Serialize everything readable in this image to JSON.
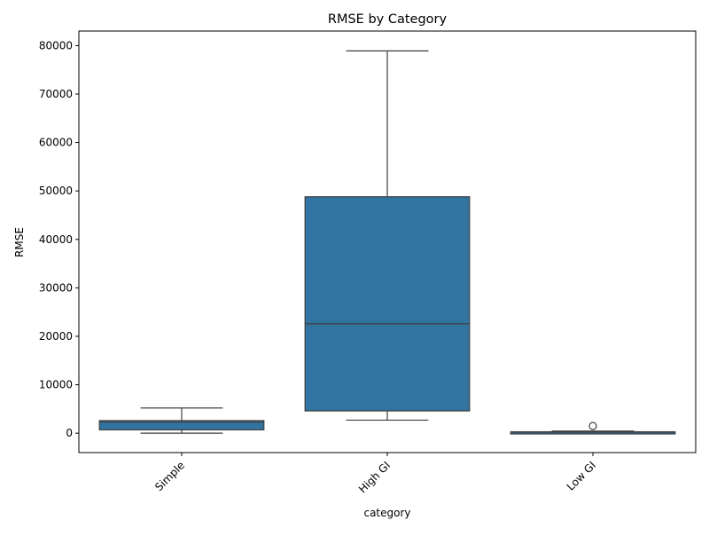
{
  "chart_data": {
    "type": "box",
    "title": "RMSE by Category",
    "xlabel": "category",
    "ylabel": "RMSE",
    "ylim": [
      -4000,
      83000
    ],
    "yticks": [
      0,
      10000,
      20000,
      30000,
      40000,
      50000,
      60000,
      70000,
      80000
    ],
    "ytick_labels": [
      "0",
      "10000",
      "20000",
      "30000",
      "40000",
      "50000",
      "60000",
      "70000",
      "80000"
    ],
    "categories": [
      "Simple",
      "High GI",
      "Low GI"
    ],
    "grid": false,
    "box_color": "#3274a1",
    "line_color": "#3f3f3f",
    "boxes": [
      {
        "category": "Simple",
        "whisker_low": 0,
        "q1": 700,
        "median": 2300,
        "q3": 2600,
        "whisker_high": 5200,
        "outliers": []
      },
      {
        "category": "High GI",
        "whisker_low": 2700,
        "q1": 4600,
        "median": 22600,
        "q3": 48800,
        "whisker_high": 78900,
        "outliers": []
      },
      {
        "category": "Low GI",
        "whisker_low": 0,
        "q1": 50,
        "median": 200,
        "q3": 300,
        "whisker_high": 450,
        "outliers": [
          1500
        ]
      }
    ]
  }
}
